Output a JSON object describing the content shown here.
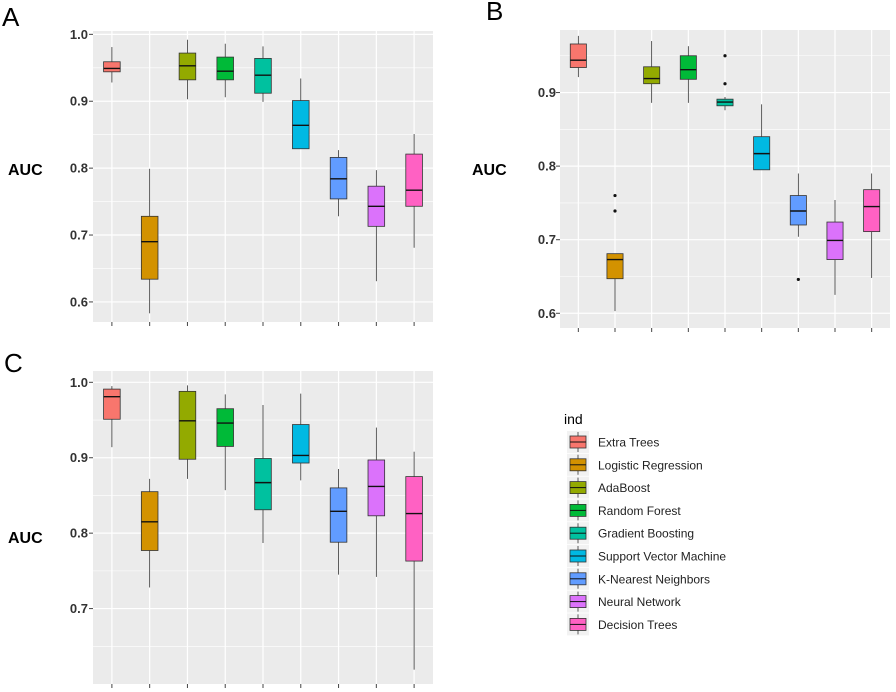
{
  "chart_data": [
    {
      "panel": "A",
      "type": "boxplot",
      "ylabel": "AUC",
      "ylim": [
        0.57,
        1.005
      ],
      "yticks": [
        0.6,
        0.7,
        0.8,
        0.9,
        1.0
      ],
      "ytick_labels": [
        "0.6",
        "0.7",
        "0.8",
        "0.9",
        "1.0"
      ],
      "series": [
        {
          "name": "Extra Trees",
          "whisker_low": 0.928,
          "q1": 0.944,
          "median": 0.949,
          "q3": 0.959,
          "whisker_high": 0.981,
          "outliers": []
        },
        {
          "name": "Logistic Regression",
          "whisker_low": 0.583,
          "q1": 0.634,
          "median": 0.69,
          "q3": 0.728,
          "whisker_high": 0.799,
          "outliers": []
        },
        {
          "name": "AdaBoost",
          "whisker_low": 0.903,
          "q1": 0.932,
          "median": 0.953,
          "q3": 0.972,
          "whisker_high": 0.992,
          "outliers": []
        },
        {
          "name": "Random Forest",
          "whisker_low": 0.906,
          "q1": 0.932,
          "median": 0.945,
          "q3": 0.966,
          "whisker_high": 0.986,
          "outliers": []
        },
        {
          "name": "Gradient Boosting",
          "whisker_low": 0.899,
          "q1": 0.912,
          "median": 0.939,
          "q3": 0.964,
          "whisker_high": 0.982,
          "outliers": []
        },
        {
          "name": "Support Vector Machine",
          "whisker_low": 0.829,
          "q1": 0.829,
          "median": 0.864,
          "q3": 0.901,
          "whisker_high": 0.934,
          "outliers": []
        },
        {
          "name": "K-Nearest Neighbors",
          "whisker_low": 0.728,
          "q1": 0.754,
          "median": 0.784,
          "q3": 0.816,
          "whisker_high": 0.827,
          "outliers": []
        },
        {
          "name": "Neural Network",
          "whisker_low": 0.631,
          "q1": 0.713,
          "median": 0.743,
          "q3": 0.773,
          "whisker_high": 0.797,
          "outliers": []
        },
        {
          "name": "Decision Trees",
          "whisker_low": 0.681,
          "q1": 0.743,
          "median": 0.767,
          "q3": 0.821,
          "whisker_high": 0.851,
          "outliers": []
        }
      ]
    },
    {
      "panel": "B",
      "type": "boxplot",
      "ylabel": "AUC",
      "ylim": [
        0.58,
        0.985
      ],
      "yticks": [
        0.6,
        0.7,
        0.8,
        0.9
      ],
      "ytick_labels": [
        "0.6",
        "0.7",
        "0.8",
        "0.9"
      ],
      "series": [
        {
          "name": "Extra Trees",
          "whisker_low": 0.921,
          "q1": 0.934,
          "median": 0.944,
          "q3": 0.966,
          "whisker_high": 0.977,
          "outliers": []
        },
        {
          "name": "Logistic Regression",
          "whisker_low": 0.603,
          "q1": 0.647,
          "median": 0.673,
          "q3": 0.681,
          "whisker_high": 0.681,
          "outliers": [
            0.739,
            0.76
          ]
        },
        {
          "name": "AdaBoost",
          "whisker_low": 0.886,
          "q1": 0.912,
          "median": 0.919,
          "q3": 0.935,
          "whisker_high": 0.97,
          "outliers": []
        },
        {
          "name": "Random Forest",
          "whisker_low": 0.886,
          "q1": 0.918,
          "median": 0.931,
          "q3": 0.95,
          "whisker_high": 0.963,
          "outliers": []
        },
        {
          "name": "Gradient Boosting",
          "whisker_low": 0.876,
          "q1": 0.882,
          "median": 0.887,
          "q3": 0.891,
          "whisker_high": 0.894,
          "outliers": [
            0.912,
            0.95
          ]
        },
        {
          "name": "Support Vector Machine",
          "whisker_low": 0.795,
          "q1": 0.795,
          "median": 0.817,
          "q3": 0.84,
          "whisker_high": 0.884,
          "outliers": []
        },
        {
          "name": "K-Nearest Neighbors",
          "whisker_low": 0.704,
          "q1": 0.72,
          "median": 0.739,
          "q3": 0.76,
          "whisker_high": 0.79,
          "outliers": [
            0.646
          ]
        },
        {
          "name": "Neural Network",
          "whisker_low": 0.625,
          "q1": 0.673,
          "median": 0.699,
          "q3": 0.724,
          "whisker_high": 0.754,
          "outliers": []
        },
        {
          "name": "Decision Trees",
          "whisker_low": 0.648,
          "q1": 0.711,
          "median": 0.745,
          "q3": 0.768,
          "whisker_high": 0.79,
          "outliers": []
        }
      ]
    },
    {
      "panel": "C",
      "type": "boxplot",
      "ylabel": "AUC",
      "ylim": [
        0.6,
        1.015
      ],
      "yticks": [
        0.7,
        0.8,
        0.9,
        1.0
      ],
      "ytick_labels": [
        "0.7",
        "0.8",
        "0.9",
        "1.0"
      ],
      "series": [
        {
          "name": "Extra Trees",
          "whisker_low": 0.914,
          "q1": 0.951,
          "median": 0.981,
          "q3": 0.991,
          "whisker_high": 0.995,
          "outliers": []
        },
        {
          "name": "Logistic Regression",
          "whisker_low": 0.728,
          "q1": 0.777,
          "median": 0.815,
          "q3": 0.855,
          "whisker_high": 0.872,
          "outliers": []
        },
        {
          "name": "AdaBoost",
          "whisker_low": 0.872,
          "q1": 0.898,
          "median": 0.949,
          "q3": 0.988,
          "whisker_high": 0.996,
          "outliers": []
        },
        {
          "name": "Random Forest",
          "whisker_low": 0.857,
          "q1": 0.915,
          "median": 0.946,
          "q3": 0.965,
          "whisker_high": 0.984,
          "outliers": []
        },
        {
          "name": "Gradient Boosting",
          "whisker_low": 0.787,
          "q1": 0.831,
          "median": 0.867,
          "q3": 0.899,
          "whisker_high": 0.97,
          "outliers": []
        },
        {
          "name": "Support Vector Machine",
          "whisker_low": 0.87,
          "q1": 0.893,
          "median": 0.903,
          "q3": 0.944,
          "whisker_high": 0.985,
          "outliers": []
        },
        {
          "name": "K-Nearest Neighbors",
          "whisker_low": 0.745,
          "q1": 0.788,
          "median": 0.829,
          "q3": 0.86,
          "whisker_high": 0.885,
          "outliers": []
        },
        {
          "name": "Neural Network",
          "whisker_low": 0.742,
          "q1": 0.823,
          "median": 0.862,
          "q3": 0.897,
          "whisker_high": 0.94,
          "outliers": []
        },
        {
          "name": "Decision Trees",
          "whisker_low": 0.619,
          "q1": 0.763,
          "median": 0.826,
          "q3": 0.875,
          "whisker_high": 0.908,
          "outliers": []
        }
      ]
    }
  ],
  "legend": {
    "title": "ind",
    "entries": [
      {
        "name": "Extra Trees",
        "color": "#F8766D"
      },
      {
        "name": "Logistic Regression",
        "color": "#D39200"
      },
      {
        "name": "AdaBoost",
        "color": "#93AA00"
      },
      {
        "name": "Random Forest",
        "color": "#00BA38"
      },
      {
        "name": "Gradient Boosting",
        "color": "#00C19F"
      },
      {
        "name": "Support Vector Machine",
        "color": "#00B9E3"
      },
      {
        "name": "K-Nearest Neighbors",
        "color": "#619CFF"
      },
      {
        "name": "Neural Network",
        "color": "#DB72FB"
      },
      {
        "name": "Decision Trees",
        "color": "#FF61C3"
      }
    ]
  },
  "colors": {
    "panel_background": "#EBEBEB",
    "grid_line": "#FFFFFF",
    "box_outline": "#333333"
  }
}
